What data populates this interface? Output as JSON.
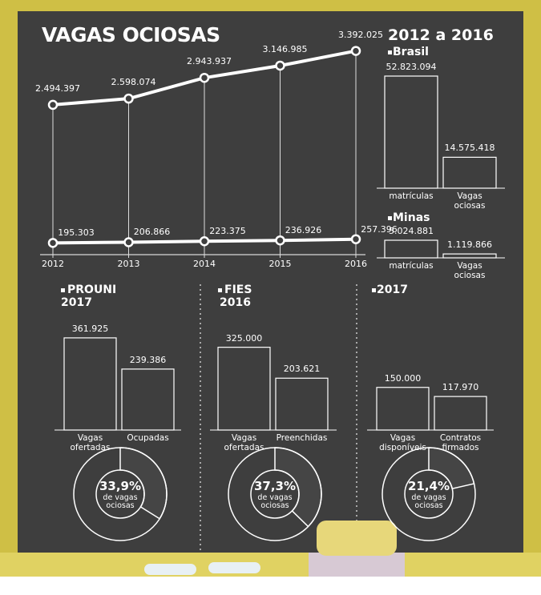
{
  "chart_data": [
    {
      "type": "line",
      "title": "VAGAS OCIOSAS",
      "x": [
        2012,
        2013,
        2014,
        2015,
        2016
      ],
      "series": [
        {
          "color": "#ffffff",
          "values": [
            2494397,
            2598074,
            2943937,
            3146985,
            3392025
          ],
          "value_labels": [
            "2.494.397",
            "2.598.074",
            "2.943.937",
            "3.146.985",
            "3.392.025"
          ]
        },
        {
          "color": "#ffffff",
          "values": [
            195303,
            206866,
            223375,
            236926,
            257396
          ],
          "value_labels": [
            "195.303",
            "206.866",
            "223.375",
            "236.926",
            "257.396"
          ]
        }
      ]
    },
    {
      "type": "bar",
      "title": "2012 a 2016",
      "subtitle": "Brasil",
      "categories": [
        "matrículas",
        "Vagas ociosas"
      ],
      "values": [
        52823094,
        14575418
      ],
      "value_labels": [
        "52.823.094",
        "14.575.418"
      ]
    },
    {
      "type": "bar",
      "subtitle": "Minas",
      "categories": [
        "matrículas",
        "Vagas ociosas"
      ],
      "values": [
        5024881,
        1119866
      ],
      "value_labels": [
        "5.024.881",
        "1.119.866"
      ]
    },
    {
      "type": "bar",
      "title": "PROUNI",
      "subtitle": "2017",
      "categories": [
        "Vagas ofertadas",
        "Ocupadas"
      ],
      "values": [
        361925,
        239386
      ],
      "value_labels": [
        "361.925",
        "239.386"
      ]
    },
    {
      "type": "pie",
      "values": [
        33.9
      ],
      "value_labels": [
        "33,9%"
      ],
      "annotation": "de vagas ociosas"
    },
    {
      "type": "bar",
      "title": "FIES",
      "subtitle": "2016",
      "categories": [
        "Vagas ofertadas",
        "Preenchidas"
      ],
      "values": [
        325000,
        203621
      ],
      "value_labels": [
        "325.000",
        "203.621"
      ]
    },
    {
      "type": "pie",
      "values": [
        37.3
      ],
      "value_labels": [
        "37,3%"
      ],
      "annotation": "de vagas ociosas"
    },
    {
      "type": "bar",
      "subtitle": "2017",
      "categories": [
        "Vagas disponíveis",
        "Contratos firmados"
      ],
      "values": [
        150000,
        117970
      ],
      "value_labels": [
        "150.000",
        "117.970"
      ]
    },
    {
      "type": "pie",
      "values": [
        21.4
      ],
      "value_labels": [
        "21,4%"
      ],
      "annotation": "de vagas ociosas"
    }
  ]
}
